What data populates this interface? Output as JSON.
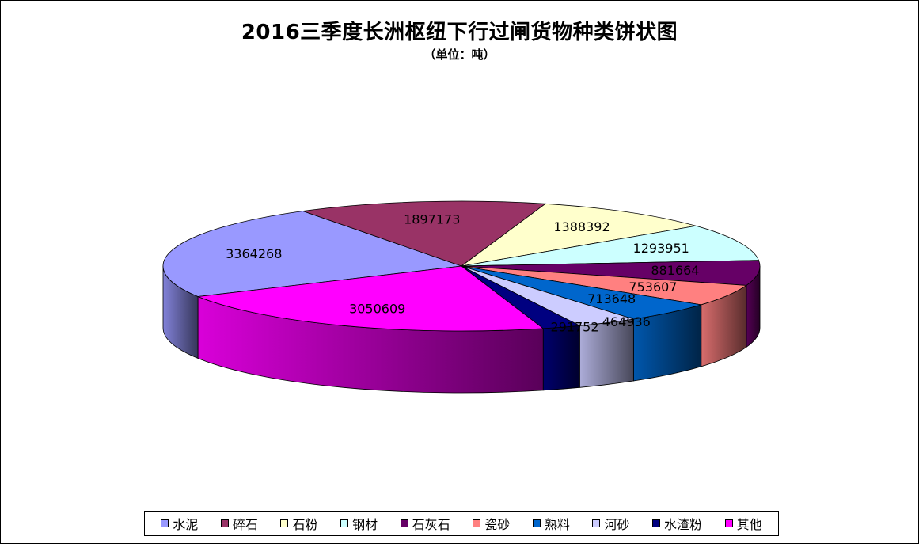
{
  "title": "2016三季度长洲枢纽下行过闸货物种类饼状图",
  "subtitle": "（单位：吨）",
  "chart_data": {
    "type": "pie",
    "title": "2016三季度长洲枢纽下行过闸货物种类饼状图",
    "subtitle": "（单位：吨）",
    "style": "3d-exploded-none",
    "legend_position": "bottom",
    "categories": [
      "水泥",
      "碎石",
      "石粉",
      "钢材",
      "石灰石",
      "瓷砂",
      "熟料",
      "河砂",
      "水渣粉",
      "其他"
    ],
    "values": [
      3364268,
      1897173,
      1388392,
      1293951,
      881664,
      753607,
      713648,
      464936,
      291752,
      3050609
    ],
    "colors": [
      "#9999FF",
      "#993366",
      "#FFFFCC",
      "#CCFFFF",
      "#660066",
      "#FF8080",
      "#0066CC",
      "#CCCCFF",
      "#000080",
      "#FF00FF"
    ]
  }
}
